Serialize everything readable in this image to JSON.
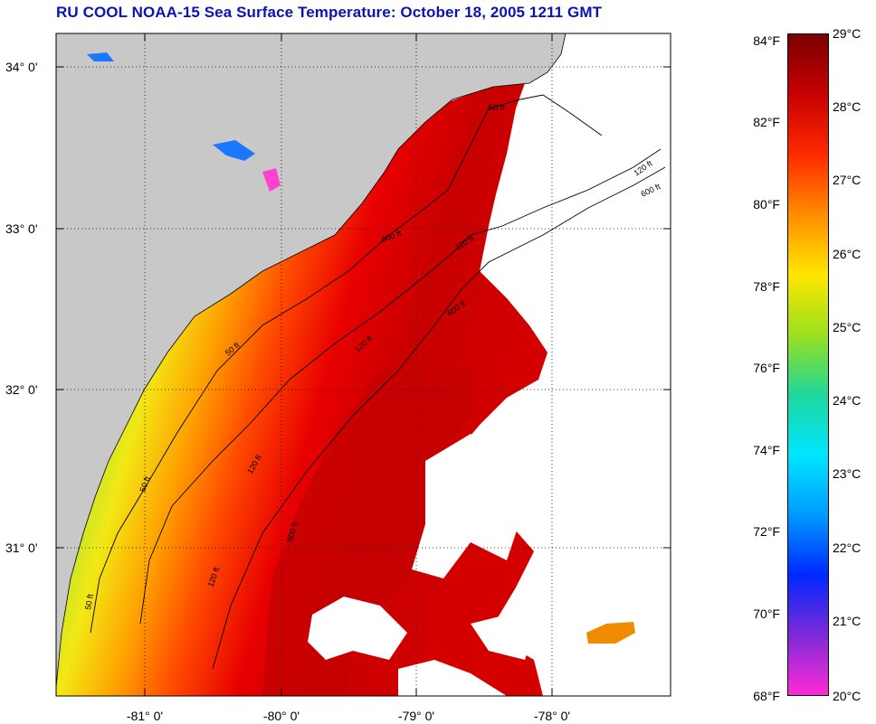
{
  "title": "RU COOL  NOAA-15  Sea Surface Temperature:  October 18, 2005 1211 GMT",
  "map": {
    "lat_labels": [
      "34° 0'",
      "33° 0'",
      "32° 0'",
      "31° 0'"
    ],
    "lon_labels": [
      "-81° 0'",
      "-80° 0'",
      "-79° 0'",
      "-78° 0'"
    ],
    "contour_labels": [
      "50 ft",
      "120 ft",
      "600 ft",
      "120 ft",
      "600 ft",
      "50 ft",
      "120 ft",
      "600 ft",
      "50 ft",
      "120 ft",
      "50 ft",
      "120 ft",
      "600 ft"
    ],
    "land_color": "#c8c8c8",
    "cloud_color": "#ffffff"
  },
  "colorbar": {
    "fahrenheit_labels": [
      "84°F",
      "82°F",
      "80°F",
      "78°F",
      "76°F",
      "74°F",
      "72°F",
      "70°F",
      "68°F"
    ],
    "celsius_labels": [
      "29°C",
      "28°C",
      "27°C",
      "26°C",
      "25°C",
      "24°C",
      "23°C",
      "22°C",
      "21°C",
      "20°C"
    ],
    "colors": [
      "#7a0000",
      "#c80000",
      "#ff2a00",
      "#ff8c00",
      "#ffe600",
      "#9be01e",
      "#1ed79b",
      "#00e6ff",
      "#009bff",
      "#0028ff",
      "#7d2ad7",
      "#ff2ad7"
    ]
  }
}
